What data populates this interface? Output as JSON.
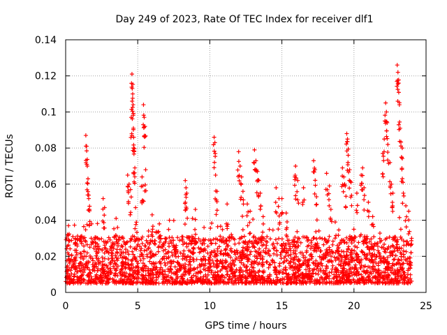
{
  "chart_data": {
    "type": "scatter",
    "title": "Day 249 of 2023, Rate Of TEC Index for receiver dlf1",
    "xlabel": "GPS time / hours",
    "ylabel": "ROTI / TECUs",
    "xlim": [
      0,
      25
    ],
    "ylim": [
      0,
      0.14
    ],
    "x_ticks": [
      {
        "value": 0,
        "label": "0"
      },
      {
        "value": 5,
        "label": "5"
      },
      {
        "value": 10,
        "label": "10"
      },
      {
        "value": 15,
        "label": "15"
      },
      {
        "value": 20,
        "label": "20"
      },
      {
        "value": 25,
        "label": "25"
      }
    ],
    "y_ticks": [
      {
        "value": 0,
        "label": "0"
      },
      {
        "value": 0.02,
        "label": "0.02"
      },
      {
        "value": 0.04,
        "label": "0.04"
      },
      {
        "value": 0.06,
        "label": "0.06"
      },
      {
        "value": 0.08,
        "label": "0.08"
      },
      {
        "value": 0.1,
        "label": "0.1"
      },
      {
        "value": 0.12,
        "label": "0.12"
      },
      {
        "value": 0.14,
        "label": "0.14"
      }
    ],
    "grid": true,
    "marker": "+",
    "series": [
      {
        "name": "ROTI",
        "color": "#ff0000",
        "time_range_hours": [
          0,
          24
        ],
        "baseline_range": [
          0.005,
          0.03
        ],
        "points": [
          [
            0.2,
            0.037
          ],
          [
            0.5,
            0.031
          ],
          [
            1.0,
            0.03
          ],
          [
            1.4,
            0.087
          ],
          [
            1.45,
            0.081
          ],
          [
            1.5,
            0.07
          ],
          [
            1.55,
            0.063
          ],
          [
            1.6,
            0.052
          ],
          [
            1.65,
            0.046
          ],
          [
            1.8,
            0.038
          ],
          [
            2.6,
            0.052
          ],
          [
            2.7,
            0.047
          ],
          [
            3.5,
            0.041
          ],
          [
            3.6,
            0.036
          ],
          [
            4.3,
            0.065
          ],
          [
            4.4,
            0.06
          ],
          [
            4.5,
            0.057
          ],
          [
            4.55,
            0.097
          ],
          [
            4.6,
            0.121
          ],
          [
            4.62,
            0.113
          ],
          [
            4.65,
            0.11
          ],
          [
            4.68,
            0.104
          ],
          [
            4.7,
            0.091
          ],
          [
            4.72,
            0.086
          ],
          [
            4.75,
            0.078
          ],
          [
            4.8,
            0.069
          ],
          [
            4.85,
            0.047
          ],
          [
            5.3,
            0.064
          ],
          [
            5.35,
            0.059
          ],
          [
            5.4,
            0.104
          ],
          [
            5.45,
            0.097
          ],
          [
            5.5,
            0.092
          ],
          [
            5.55,
            0.068
          ],
          [
            6.0,
            0.043
          ],
          [
            6.5,
            0.038
          ],
          [
            7.2,
            0.04
          ],
          [
            8.3,
            0.062
          ],
          [
            8.35,
            0.058
          ],
          [
            8.4,
            0.055
          ],
          [
            8.8,
            0.041
          ],
          [
            9.0,
            0.046
          ],
          [
            9.6,
            0.036
          ],
          [
            10.3,
            0.086
          ],
          [
            10.35,
            0.083
          ],
          [
            10.4,
            0.065
          ],
          [
            10.5,
            0.056
          ],
          [
            11.2,
            0.049
          ],
          [
            12.0,
            0.078
          ],
          [
            12.1,
            0.07
          ],
          [
            12.2,
            0.064
          ],
          [
            12.3,
            0.056
          ],
          [
            12.6,
            0.049
          ],
          [
            12.8,
            0.045
          ],
          [
            13.1,
            0.079
          ],
          [
            13.2,
            0.073
          ],
          [
            13.3,
            0.067
          ],
          [
            13.4,
            0.062
          ],
          [
            13.5,
            0.055
          ],
          [
            13.7,
            0.042
          ],
          [
            14.6,
            0.058
          ],
          [
            14.8,
            0.052
          ],
          [
            15.0,
            0.052
          ],
          [
            15.3,
            0.044
          ],
          [
            15.9,
            0.064
          ],
          [
            15.95,
            0.07
          ],
          [
            16.1,
            0.062
          ],
          [
            16.5,
            0.058
          ],
          [
            17.2,
            0.073
          ],
          [
            17.3,
            0.068
          ],
          [
            17.4,
            0.053
          ],
          [
            18.1,
            0.066
          ],
          [
            18.3,
            0.059
          ],
          [
            18.4,
            0.046
          ],
          [
            18.7,
            0.039
          ],
          [
            19.2,
            0.069
          ],
          [
            19.3,
            0.064
          ],
          [
            19.4,
            0.059
          ],
          [
            19.5,
            0.088
          ],
          [
            19.55,
            0.085
          ],
          [
            19.6,
            0.076
          ],
          [
            19.7,
            0.068
          ],
          [
            19.8,
            0.061
          ],
          [
            20.2,
            0.055
          ],
          [
            20.5,
            0.065
          ],
          [
            20.6,
            0.069
          ],
          [
            20.7,
            0.058
          ],
          [
            21.0,
            0.05
          ],
          [
            21.3,
            0.042
          ],
          [
            22.0,
            0.077
          ],
          [
            22.1,
            0.085
          ],
          [
            22.2,
            0.105
          ],
          [
            22.25,
            0.1
          ],
          [
            22.3,
            0.094
          ],
          [
            22.35,
            0.082
          ],
          [
            22.5,
            0.072
          ],
          [
            22.6,
            0.06
          ],
          [
            22.7,
            0.055
          ],
          [
            23.0,
            0.126
          ],
          [
            23.05,
            0.122
          ],
          [
            23.1,
            0.116
          ],
          [
            23.15,
            0.104
          ],
          [
            23.2,
            0.091
          ],
          [
            23.3,
            0.075
          ],
          [
            23.35,
            0.08
          ],
          [
            23.4,
            0.061
          ],
          [
            23.6,
            0.048
          ],
          [
            23.8,
            0.045
          ],
          [
            24.0,
            0.03
          ]
        ]
      }
    ]
  }
}
